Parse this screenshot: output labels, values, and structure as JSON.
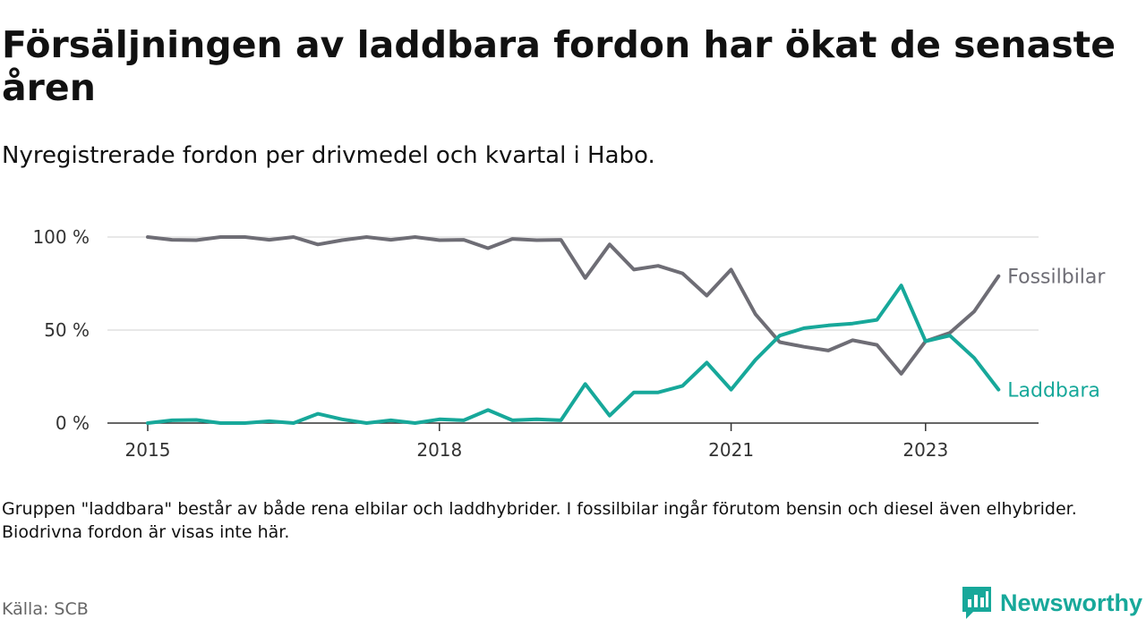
{
  "title": "Försäljningen av laddbara fordon har ökat de senaste åren",
  "subtitle": "Nyregistrerade fordon per drivmedel och kvartal i Habo.",
  "footnote": "Gruppen \"laddbara\" består av både rena elbilar och laddhybrider. I fossilbilar ingår förutom bensin och diesel även elhybrider. Biodrivna fordon är visas inte här.",
  "source": "Källa: SCB",
  "brand": {
    "name": "Newsworthy",
    "color": "#17a89a"
  },
  "chart_data": {
    "type": "line",
    "x_start_year": 2015,
    "quarters_count": 36,
    "ylim": [
      0,
      100
    ],
    "yticks": [
      0,
      50,
      100
    ],
    "ytick_labels": [
      "0 %",
      "50 %",
      "100 %"
    ],
    "xticks": [
      {
        "label": "2015",
        "index": 0
      },
      {
        "label": "2018",
        "index": 12
      },
      {
        "label": "2021",
        "index": 24
      },
      {
        "label": "2023",
        "index": 32
      }
    ],
    "series": [
      {
        "name": "Fossilbilar",
        "color": "#6e6d75",
        "values": [
          100,
          98.5,
          98.3,
          100,
          100,
          98.5,
          100,
          96,
          98.3,
          100,
          98.5,
          100,
          98.3,
          98.5,
          94,
          99,
          98.3,
          98.5,
          78,
          96,
          82.5,
          84.5,
          80.5,
          68.5,
          82.5,
          58.5,
          43.5,
          41,
          39,
          44.5,
          42,
          26.5,
          44,
          48.5,
          60,
          79
        ]
      },
      {
        "name": "Laddbara",
        "color": "#17a89a",
        "values": [
          0,
          1.5,
          1.7,
          0,
          0,
          1,
          0,
          5,
          2,
          0,
          1.5,
          0,
          2,
          1.5,
          7,
          1.5,
          2,
          1.5,
          21,
          4,
          16.5,
          16.5,
          20,
          32.5,
          18,
          34,
          47,
          51,
          52.5,
          53.5,
          55.5,
          74,
          44,
          47,
          35,
          18
        ]
      }
    ]
  }
}
